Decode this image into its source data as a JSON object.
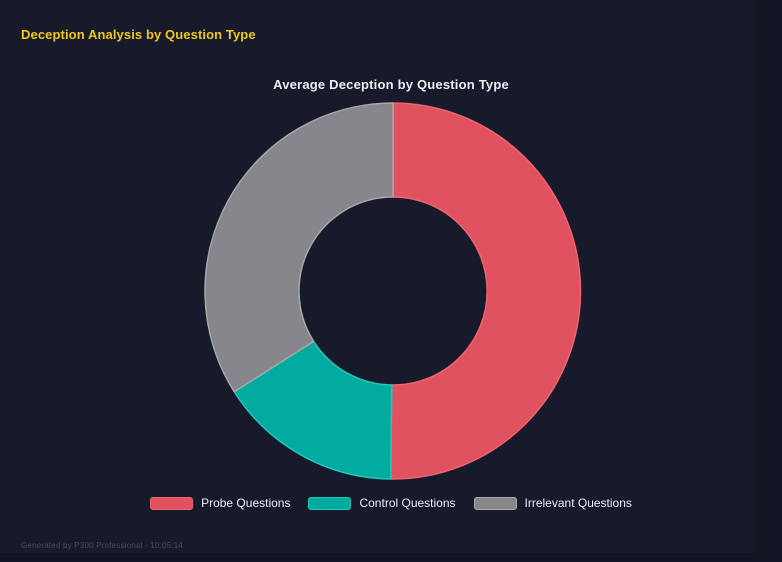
{
  "page": {
    "background": "#131622",
    "panel_background": "#171A2B"
  },
  "header": {
    "title": "Deception Analysis by Question Type",
    "title_color": "#EFC71D"
  },
  "chart_data": {
    "type": "pie",
    "variant": "donut",
    "title": "Average Deception by Question Type",
    "title_color": "#EDEEF3",
    "categories": [
      "Probe Questions",
      "Control Questions",
      "Irrelevant Questions"
    ],
    "values_percent": [
      50.2,
      15.8,
      34.0
    ],
    "segments": [
      {
        "label": "Probe Questions",
        "percent": 50.2,
        "color": "#E0525F",
        "border_color": "#F2636F"
      },
      {
        "label": "Control Questions",
        "percent": 15.8,
        "color": "#01ABA0",
        "border_color": "#27C8BB"
      },
      {
        "label": "Irrelevant Questions",
        "percent": 34.0,
        "color": "#87878B",
        "border_color": "#A8A8AD"
      }
    ],
    "start_angle_deg_from_top": 0,
    "direction": "clockwise",
    "inner_radius_ratio": 0.5,
    "legend_position": "bottom",
    "data_labels_shown": false
  },
  "footer": {
    "text": "Generated by P300 Professional - 10:05:14",
    "color": "#454C66"
  }
}
